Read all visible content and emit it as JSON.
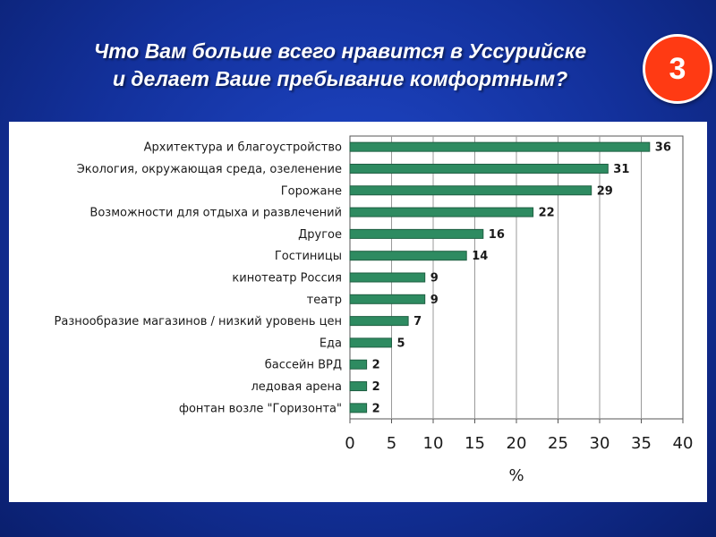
{
  "slide": {
    "title_line1": "Что Вам больше всего нравится в Уссурийске",
    "title_line2": "и делает Ваше пребывание комфортным?",
    "badge": "3"
  },
  "colors": {
    "bar": "#2e8b61",
    "badge": "#ff3a13"
  },
  "chart_data": {
    "type": "bar",
    "orientation": "horizontal",
    "title": "",
    "xlabel": "%",
    "ylabel": "",
    "xlim": [
      0,
      40
    ],
    "xticks": [
      0,
      5,
      10,
      15,
      20,
      25,
      30,
      35,
      40
    ],
    "grid": true,
    "categories": [
      "Архитектура и благоустройство",
      "Экология, окружающая среда, озеленение",
      "Горожане",
      "Возможности для отдыха и развлечений",
      "Другое",
      "Гостиницы",
      "кинотеатр Россия",
      "театр",
      "Разнообразие магазинов / низкий уровень цен",
      "Еда",
      "бассейн ВРД",
      "ледовая арена",
      "фонтан возле \"Горизонта\""
    ],
    "values": [
      36,
      31,
      29,
      22,
      16,
      14,
      9,
      9,
      7,
      5,
      2,
      2,
      2
    ]
  }
}
